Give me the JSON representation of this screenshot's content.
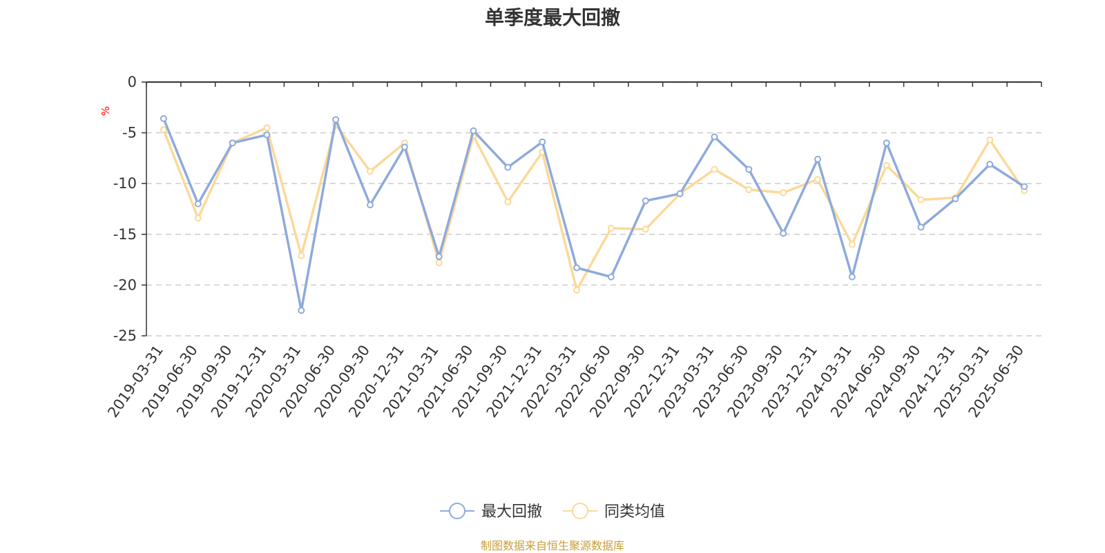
{
  "title": "单季度最大回撤",
  "source_note": "制图数据来自恒生聚源数据库",
  "chart_data": {
    "type": "line",
    "title": "单季度最大回撤",
    "ylabel": "%",
    "ylim": [
      -25,
      0
    ],
    "yticks": [
      0,
      -5,
      -10,
      -15,
      -20,
      -25
    ],
    "grid": true,
    "legend_position": "bottom-center",
    "categories": [
      "2019-03-31",
      "2019-06-30",
      "2019-09-30",
      "2019-12-31",
      "2020-03-31",
      "2020-06-30",
      "2020-09-30",
      "2020-12-31",
      "2021-03-31",
      "2021-06-30",
      "2021-09-30",
      "2021-12-31",
      "2022-03-31",
      "2022-06-30",
      "2022-09-30",
      "2022-12-31",
      "2023-03-31",
      "2023-06-30",
      "2023-09-30",
      "2023-12-31",
      "2024-03-31",
      "2024-06-30",
      "2024-09-30",
      "2024-12-31",
      "2025-03-31",
      "2025-06-30"
    ],
    "series": [
      {
        "name": "最大回撤",
        "color": "#8eaadb",
        "values": [
          -3.6,
          -12.0,
          -6.0,
          -5.2,
          -22.5,
          -3.7,
          -12.1,
          -6.4,
          -17.2,
          -4.8,
          -8.4,
          -5.9,
          -18.3,
          -19.2,
          -11.7,
          -11.0,
          -5.4,
          -8.6,
          -14.9,
          -7.6,
          -19.2,
          -6.0,
          -14.3,
          -11.5,
          -8.1,
          -10.3
        ]
      },
      {
        "name": "同类均值",
        "color": "#fbd998",
        "values": [
          -4.7,
          -13.4,
          -6.0,
          -4.5,
          -17.1,
          -4.2,
          -8.8,
          -6.0,
          -17.8,
          -5.3,
          -11.8,
          -6.9,
          -20.5,
          -14.4,
          -14.5,
          -11.0,
          -8.6,
          -10.6,
          -10.9,
          -9.6,
          -16.0,
          -8.2,
          -11.6,
          -11.4,
          -5.7,
          -10.7
        ]
      }
    ]
  }
}
